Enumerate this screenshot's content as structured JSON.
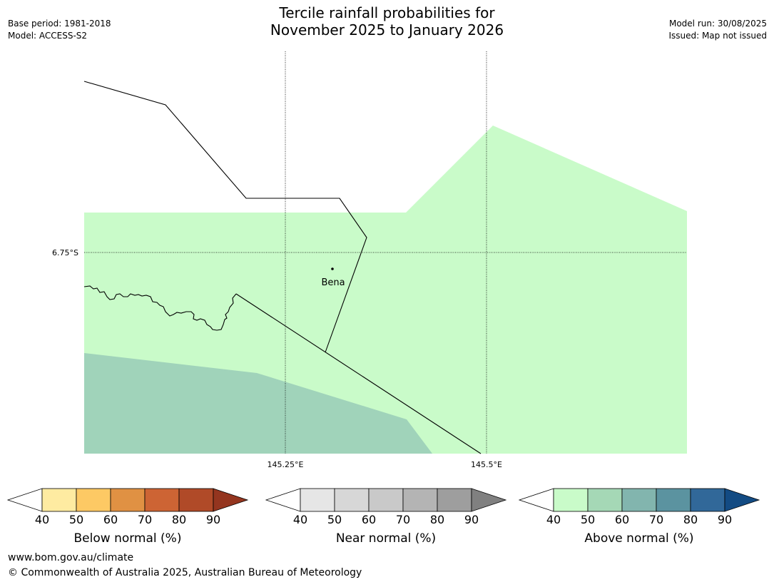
{
  "header": {
    "title_line1": "Tercile rainfall probabilities for",
    "title_line2": "November 2025 to January 2026",
    "base_period": "Base period: 1981-2018",
    "model": "Model: ACCESS-S2",
    "model_run": "Model run: 30/08/2025",
    "issued": "Issued: Map not issued"
  },
  "map": {
    "lat_label": "6.75°S",
    "lon_labels": [
      "145.25°E",
      "145.5°E"
    ],
    "place_name": "Bena",
    "colors": {
      "above_40_50": "#c9fbc9",
      "above_50_60": "#a0d3ba"
    }
  },
  "legends": [
    {
      "title": "Below normal (%)",
      "ticks": [
        "40",
        "50",
        "60",
        "70",
        "80",
        "90"
      ],
      "colors": [
        "#ffffff",
        "#feeba1",
        "#fdc964",
        "#e09143",
        "#cd6434",
        "#b04a28",
        "#94351f"
      ]
    },
    {
      "title": "Near normal (%)",
      "ticks": [
        "40",
        "50",
        "60",
        "70",
        "80",
        "90"
      ],
      "colors": [
        "#ffffff",
        "#e6e6e6",
        "#d7d7d7",
        "#c9c9c9",
        "#b4b4b4",
        "#9e9e9e",
        "#808080"
      ]
    },
    {
      "title": "Above normal (%)",
      "ticks": [
        "40",
        "50",
        "60",
        "70",
        "80",
        "90"
      ],
      "colors": [
        "#ffffff",
        "#c9fbc9",
        "#a5d8b6",
        "#82b5ae",
        "#5b93a0",
        "#316899",
        "#134b83"
      ]
    }
  ],
  "footer": {
    "url": "www.bom.gov.au/climate",
    "copyright": "© Commonwealth of Australia 2025, Australian Bureau of Meteorology"
  }
}
